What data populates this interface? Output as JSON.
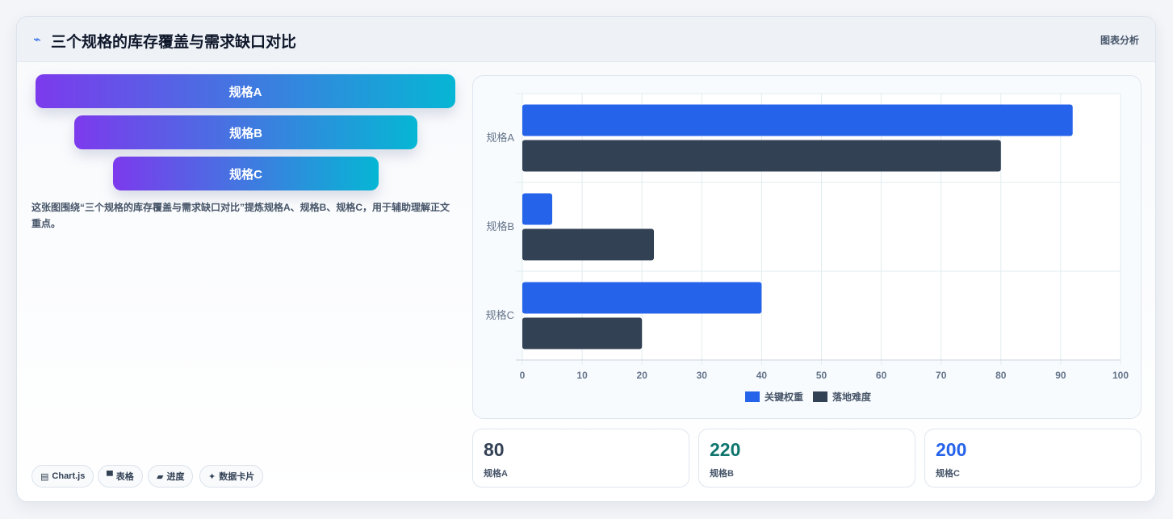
{
  "header": {
    "icon": "trend-line-icon",
    "title": "三个规格的库存覆盖与需求缺口对比",
    "right_label": "图表分析"
  },
  "funnel": {
    "items": [
      "规格A",
      "规格B",
      "规格C"
    ],
    "gradient": [
      "#7c3aed",
      "#06b6d4"
    ]
  },
  "description": "这张图围绕“三个规格的库存覆盖与需求缺口对比”提炼规格A、规格B、规格C，用于辅助理解正文重点。",
  "chips": [
    {
      "icon": "chart-icon",
      "label": "Chart.js"
    },
    {
      "icon": "table-icon",
      "label": "表格"
    },
    {
      "icon": "progress-icon",
      "label": "进度"
    },
    {
      "icon": "sparkle-icon",
      "label": "数据卡片"
    }
  ],
  "chart_data": {
    "type": "bar",
    "orientation": "horizontal",
    "categories": [
      "规格A",
      "规格B",
      "规格C"
    ],
    "series": [
      {
        "name": "关键权重",
        "values": [
          92,
          5,
          40
        ],
        "color": "#2563eb"
      },
      {
        "name": "落地难度",
        "values": [
          80,
          22,
          20
        ],
        "color": "#334155"
      }
    ],
    "xlim": [
      0,
      100
    ],
    "xticks": [
      0,
      10,
      20,
      30,
      40,
      50,
      60,
      70,
      80,
      90,
      100
    ],
    "grid": true,
    "legend": "bottom"
  },
  "stats": [
    {
      "value": "80",
      "label": "规格A",
      "color": "#334155"
    },
    {
      "value": "220",
      "label": "规格B",
      "color": "#0f766e"
    },
    {
      "value": "200",
      "label": "规格C",
      "color": "#2563eb"
    }
  ]
}
